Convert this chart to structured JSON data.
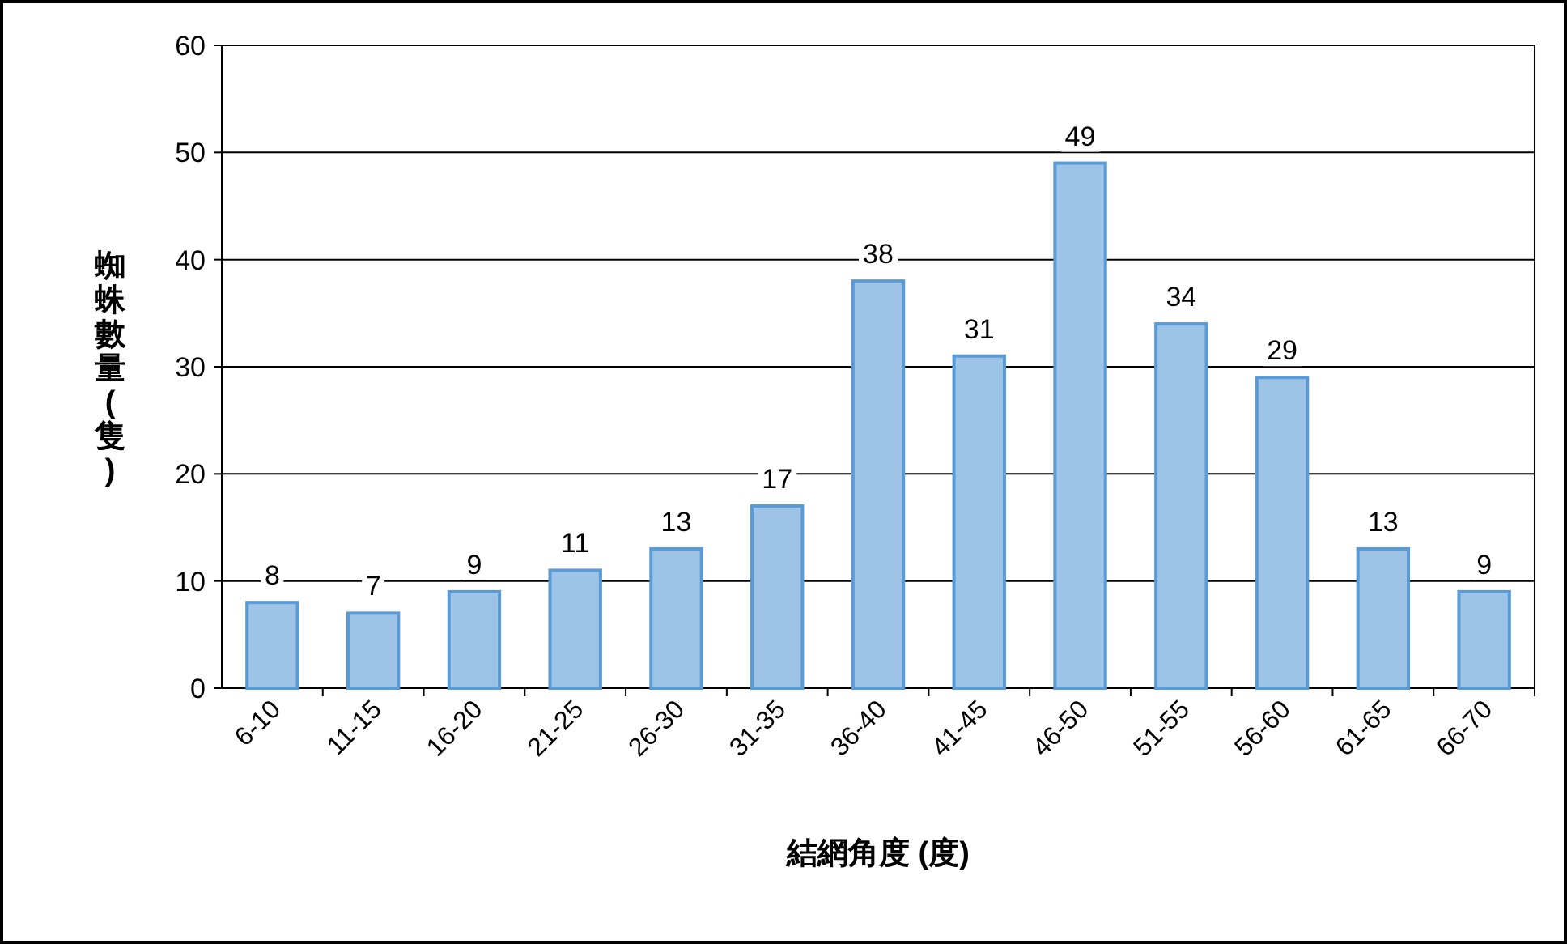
{
  "chart_data": {
    "type": "bar",
    "xlabel": "結網角度 (度)",
    "ylabel": "蜘蛛數量(隻)",
    "categories": [
      "6-10",
      "11-15",
      "16-20",
      "21-25",
      "26-30",
      "31-35",
      "36-40",
      "41-45",
      "46-50",
      "51-55",
      "56-60",
      "61-65",
      "66-70"
    ],
    "values": [
      8,
      7,
      9,
      11,
      13,
      17,
      38,
      31,
      49,
      34,
      29,
      13,
      9
    ],
    "color": "#9dc3e6",
    "ylim": [
      0,
      60
    ],
    "yticks": [
      0,
      10,
      20,
      30,
      40,
      50,
      60
    ],
    "grid": "y",
    "data_labels": true
  }
}
